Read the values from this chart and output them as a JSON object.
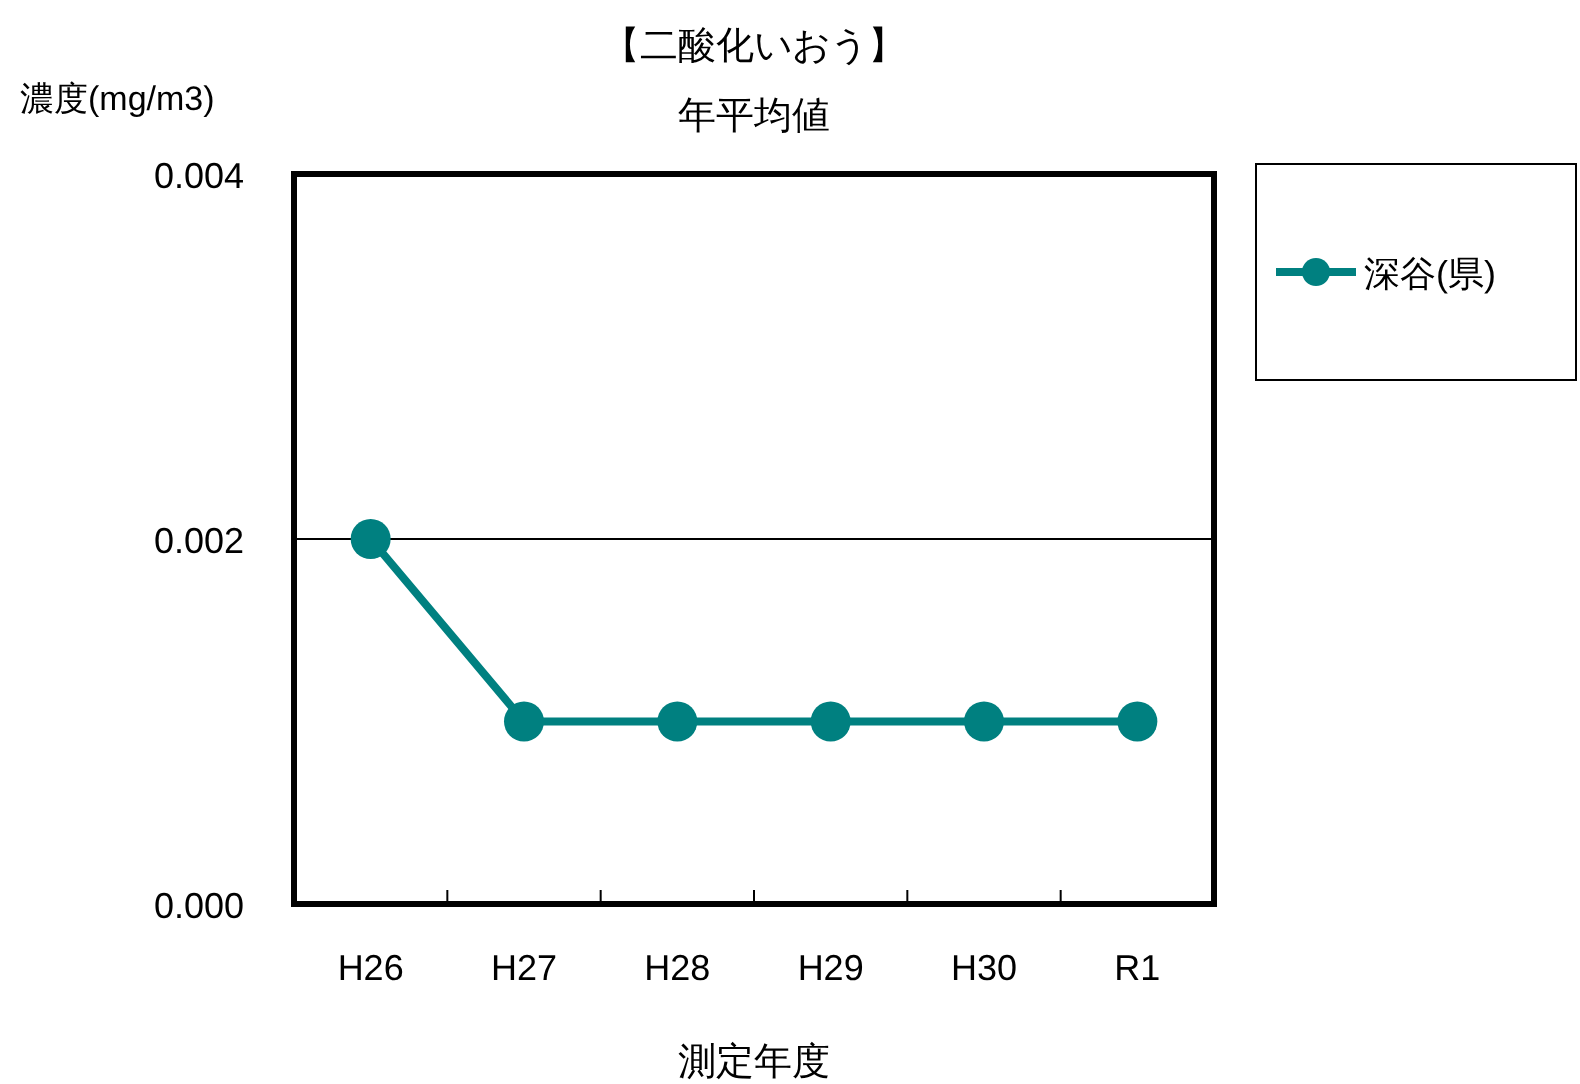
{
  "chart_data": {
    "type": "line",
    "title": "【二酸化いおう】",
    "subtitle": "年平均値",
    "xlabel": "測定年度",
    "ylabel": "濃度(mg/m3)",
    "categories": [
      "H26",
      "H27",
      "H28",
      "H29",
      "H30",
      "R1"
    ],
    "series": [
      {
        "name": "深谷(県)",
        "color": "#008080",
        "values": [
          0.002,
          0.001,
          0.001,
          0.001,
          0.001,
          0.001
        ]
      }
    ],
    "ylim": [
      0,
      0.004
    ],
    "yticks": [
      {
        "value": 0,
        "label": "0.000"
      },
      {
        "value": 0.002,
        "label": "0.002"
      },
      {
        "value": 0.004,
        "label": "0.004"
      }
    ],
    "grid": "y",
    "legend": "top right",
    "marker": "circle",
    "line_style": "solid"
  }
}
